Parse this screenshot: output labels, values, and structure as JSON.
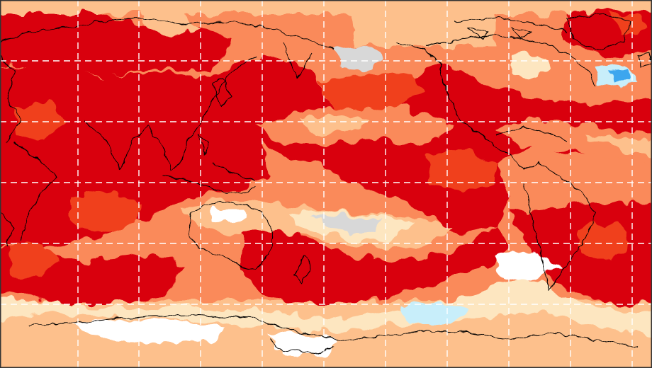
{
  "map": {
    "projection": "equirectangular",
    "center_longitude": 150,
    "grid_lines": "dashed",
    "frame_color": "#333333",
    "palette": {
      "very_high": "#d9000f",
      "high": "#f0401f",
      "moderate": "#fa8a5a",
      "low": "#fdc08c",
      "slight": "#fde6c0",
      "neutral": "#ffffff",
      "missing": "#d8d8d8",
      "slight_cool": "#c8eefa",
      "cool": "#3ea6ee",
      "coastline": "#000000",
      "grid": "#ffffff"
    }
  }
}
